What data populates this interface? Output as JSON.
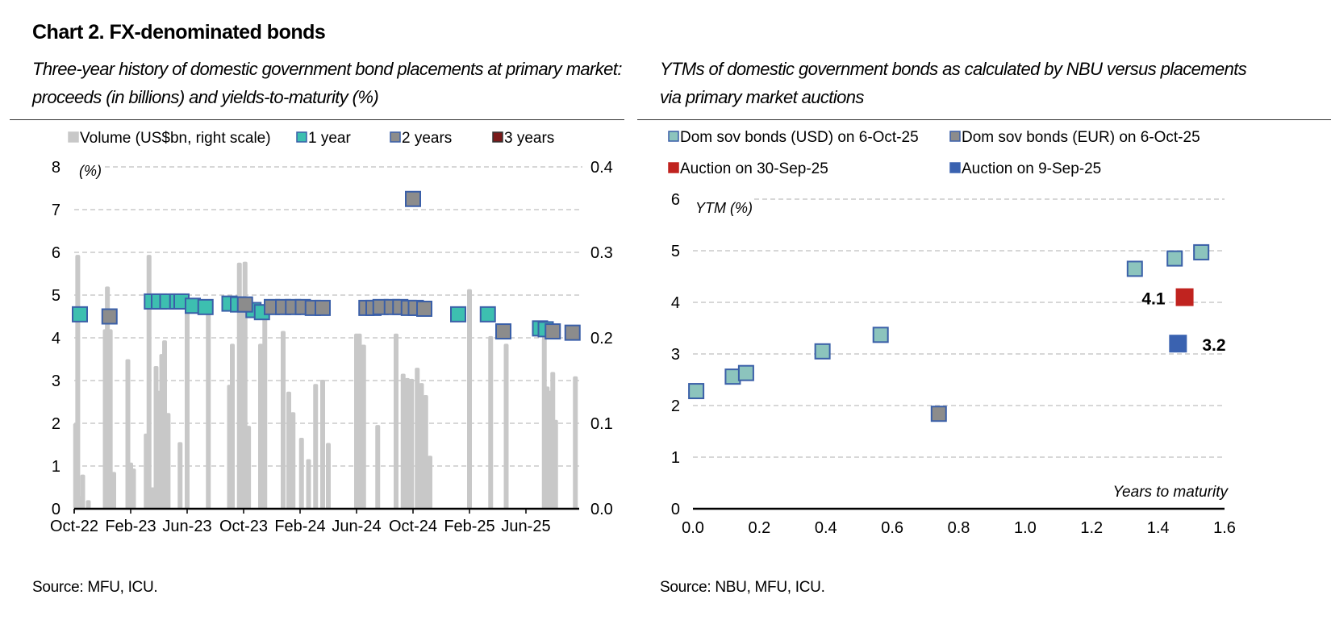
{
  "header": {
    "title": "Chart 2. FX-denominated bonds",
    "left_subtitle_line1": "Three-year history of domestic government bond placements at primary market:",
    "left_subtitle_line2": "proceeds (in billions) and yields-to-maturity (%)",
    "right_subtitle_line1": "YTMs of domestic government bonds as calculated by NBU versus placements",
    "right_subtitle_line2": "via primary market auctions"
  },
  "footer": {
    "left_source": "Source: MFU, ICU.",
    "right_source": "Source: NBU, MFU, ICU."
  },
  "colors": {
    "volume_bar": "#c8c8c8",
    "one_year": "#3dbfb0",
    "two_years": "#8c8c8c",
    "three_years": "#7a1a1a",
    "marker_border": "#3a5fa8",
    "usd_bonds": "#8cc4bd",
    "eur_bonds": "#8c8c8c",
    "auction_30sep": "#c0231f",
    "auction_9sep": "#3a62b0",
    "grid": "#bfbfbf"
  },
  "chart_data": [
    {
      "type": "bar+scatter",
      "title": "Three-year history of domestic government bond placements at primary market: proceeds (in billions) and yields-to-maturity (%)",
      "legend": [
        "Volume (US$bn, right scale)",
        "1 year",
        "2 years",
        "3 years"
      ],
      "legend_position": "top",
      "y_left_label": "(%)",
      "y_left_lim": [
        0,
        8
      ],
      "y_left_ticks": [
        "0",
        "1",
        "2",
        "3",
        "4",
        "5",
        "6",
        "7",
        "8"
      ],
      "y_right_lim": [
        0,
        0.4
      ],
      "y_right_ticks": [
        "0.0",
        "0.1",
        "0.2",
        "0.3",
        "0.4"
      ],
      "x_unit": "months since Oct-22",
      "x_lim": [
        0,
        36
      ],
      "x_ticks": [
        {
          "m": 0,
          "label": "Oct-22"
        },
        {
          "m": 4,
          "label": "Feb-23"
        },
        {
          "m": 8,
          "label": "Jun-23"
        },
        {
          "m": 12,
          "label": "Oct-23"
        },
        {
          "m": 16,
          "label": "Feb-24"
        },
        {
          "m": 20,
          "label": "Jun-24"
        },
        {
          "m": 24,
          "label": "Oct-24"
        },
        {
          "m": 28,
          "label": "Feb-25"
        },
        {
          "m": 32,
          "label": "Jun-25"
        }
      ],
      "grid": "horizontal dashed",
      "volume_bars": [
        {
          "m": 0.1,
          "v": 0.1
        },
        {
          "m": 0.25,
          "v": 0.297
        },
        {
          "m": 0.45,
          "v": 0.015
        },
        {
          "m": 0.6,
          "v": 0.04
        },
        {
          "m": 1.0,
          "v": 0.01
        },
        {
          "m": 2.2,
          "v": 0.21
        },
        {
          "m": 2.35,
          "v": 0.26
        },
        {
          "m": 2.55,
          "v": 0.21
        },
        {
          "m": 2.8,
          "v": 0.043
        },
        {
          "m": 3.8,
          "v": 0.175
        },
        {
          "m": 4.0,
          "v": 0.054
        },
        {
          "m": 4.2,
          "v": 0.047
        },
        {
          "m": 5.1,
          "v": 0.088
        },
        {
          "m": 5.3,
          "v": 0.297
        },
        {
          "m": 5.55,
          "v": 0.025
        },
        {
          "m": 5.8,
          "v": 0.167
        },
        {
          "m": 6.0,
          "v": 0.138
        },
        {
          "m": 6.2,
          "v": 0.181
        },
        {
          "m": 6.4,
          "v": 0.197
        },
        {
          "m": 6.65,
          "v": 0.112
        },
        {
          "m": 7.5,
          "v": 0.078
        },
        {
          "m": 8.0,
          "v": 0.237
        },
        {
          "m": 9.5,
          "v": 0.237
        },
        {
          "m": 11.0,
          "v": 0.145
        },
        {
          "m": 11.2,
          "v": 0.193
        },
        {
          "m": 11.7,
          "v": 0.288
        },
        {
          "m": 11.9,
          "v": 0.239
        },
        {
          "m": 12.1,
          "v": 0.289
        },
        {
          "m": 12.35,
          "v": 0.097
        },
        {
          "m": 13.2,
          "v": 0.193
        },
        {
          "m": 13.5,
          "v": 0.237
        },
        {
          "m": 14.8,
          "v": 0.208
        },
        {
          "m": 15.2,
          "v": 0.137
        },
        {
          "m": 15.5,
          "v": 0.113
        },
        {
          "m": 16.1,
          "v": 0.083
        },
        {
          "m": 16.6,
          "v": 0.058
        },
        {
          "m": 17.1,
          "v": 0.146
        },
        {
          "m": 17.6,
          "v": 0.151
        },
        {
          "m": 18.0,
          "v": 0.077
        },
        {
          "m": 20.0,
          "v": 0.205
        },
        {
          "m": 20.2,
          "v": 0.205
        },
        {
          "m": 20.5,
          "v": 0.192
        },
        {
          "m": 21.5,
          "v": 0.098
        },
        {
          "m": 22.8,
          "v": 0.205
        },
        {
          "m": 23.3,
          "v": 0.158
        },
        {
          "m": 23.6,
          "v": 0.153
        },
        {
          "m": 23.9,
          "v": 0.152
        },
        {
          "m": 24.3,
          "v": 0.165
        },
        {
          "m": 24.6,
          "v": 0.147
        },
        {
          "m": 24.9,
          "v": 0.133
        },
        {
          "m": 25.2,
          "v": 0.062
        },
        {
          "m": 28.0,
          "v": 0.257
        },
        {
          "m": 29.5,
          "v": 0.202
        },
        {
          "m": 30.6,
          "v": 0.193
        },
        {
          "m": 33.3,
          "v": 0.2
        },
        {
          "m": 33.5,
          "v": 0.143
        },
        {
          "m": 33.7,
          "v": 0.138
        },
        {
          "m": 33.9,
          "v": 0.16
        },
        {
          "m": 34.1,
          "v": 0.104
        },
        {
          "m": 35.5,
          "v": 0.155
        }
      ],
      "series": [
        {
          "name": "1 year",
          "points": [
            {
              "m": 0.4,
              "y": 4.55
            },
            {
              "m": 5.5,
              "y": 4.85
            },
            {
              "m": 6.0,
              "y": 4.85
            },
            {
              "m": 6.6,
              "y": 4.85
            },
            {
              "m": 7.3,
              "y": 4.85
            },
            {
              "m": 7.6,
              "y": 4.85
            },
            {
              "m": 8.4,
              "y": 4.75
            },
            {
              "m": 9.3,
              "y": 4.72
            },
            {
              "m": 11.0,
              "y": 4.8
            },
            {
              "m": 11.6,
              "y": 4.78
            },
            {
              "m": 12.7,
              "y": 4.65
            },
            {
              "m": 13.3,
              "y": 4.6
            },
            {
              "m": 27.2,
              "y": 4.55
            },
            {
              "m": 29.3,
              "y": 4.55
            },
            {
              "m": 33.0,
              "y": 4.22
            },
            {
              "m": 33.4,
              "y": 4.2
            }
          ]
        },
        {
          "name": "2 years",
          "points": [
            {
              "m": 2.5,
              "y": 4.5
            },
            {
              "m": 12.1,
              "y": 4.78
            },
            {
              "m": 14.0,
              "y": 4.72
            },
            {
              "m": 14.8,
              "y": 4.72
            },
            {
              "m": 15.5,
              "y": 4.72
            },
            {
              "m": 16.2,
              "y": 4.72
            },
            {
              "m": 16.9,
              "y": 4.7
            },
            {
              "m": 17.6,
              "y": 4.7
            },
            {
              "m": 20.7,
              "y": 4.7
            },
            {
              "m": 21.2,
              "y": 4.7
            },
            {
              "m": 21.7,
              "y": 4.72
            },
            {
              "m": 22.5,
              "y": 4.72
            },
            {
              "m": 23.1,
              "y": 4.72
            },
            {
              "m": 23.7,
              "y": 4.7
            },
            {
              "m": 24.2,
              "y": 4.7
            },
            {
              "m": 24.8,
              "y": 4.68
            },
            {
              "m": 24.0,
              "y": 7.25
            },
            {
              "m": 30.4,
              "y": 4.15
            },
            {
              "m": 33.9,
              "y": 4.15
            },
            {
              "m": 35.3,
              "y": 4.12
            }
          ]
        },
        {
          "name": "3 years",
          "points": []
        }
      ]
    },
    {
      "type": "scatter",
      "title": "YTMs of domestic government bonds as calculated by NBU versus placements via primary market auctions",
      "legend": [
        "Dom sov bonds (USD) on 6-Oct-25",
        "Dom sov bonds (EUR) on 6-Oct-25",
        "Auction on 30-Sep-25",
        "Auction on 9-Sep-25"
      ],
      "legend_position": "top",
      "xlabel": "Years to maturity",
      "ylabel": "YTM (%)",
      "xlim": [
        0,
        1.6
      ],
      "ylim": [
        0,
        6
      ],
      "x_ticks": [
        "0.0",
        "0.2",
        "0.4",
        "0.6",
        "0.8",
        "1.0",
        "1.2",
        "1.4",
        "1.6"
      ],
      "y_ticks": [
        "0",
        "1",
        "2",
        "3",
        "4",
        "5",
        "6"
      ],
      "grid": "horizontal dashed",
      "series": [
        {
          "name": "Dom sov bonds (USD) on 6-Oct-25",
          "points": [
            {
              "x": 0.01,
              "y": 2.28
            },
            {
              "x": 0.12,
              "y": 2.56
            },
            {
              "x": 0.16,
              "y": 2.63
            },
            {
              "x": 0.39,
              "y": 3.05
            },
            {
              "x": 0.565,
              "y": 3.37
            },
            {
              "x": 1.33,
              "y": 4.65
            },
            {
              "x": 1.45,
              "y": 4.85
            },
            {
              "x": 1.53,
              "y": 4.97
            }
          ]
        },
        {
          "name": "Dom sov bonds (EUR) on 6-Oct-25",
          "points": [
            {
              "x": 0.74,
              "y": 1.84
            }
          ]
        },
        {
          "name": "Auction on 30-Sep-25",
          "points": [
            {
              "x": 1.48,
              "y": 4.1,
              "label": "4.1"
            }
          ]
        },
        {
          "name": "Auction on 9-Sep-25",
          "points": [
            {
              "x": 1.46,
              "y": 3.2,
              "label": "3.2"
            }
          ]
        }
      ]
    }
  ]
}
